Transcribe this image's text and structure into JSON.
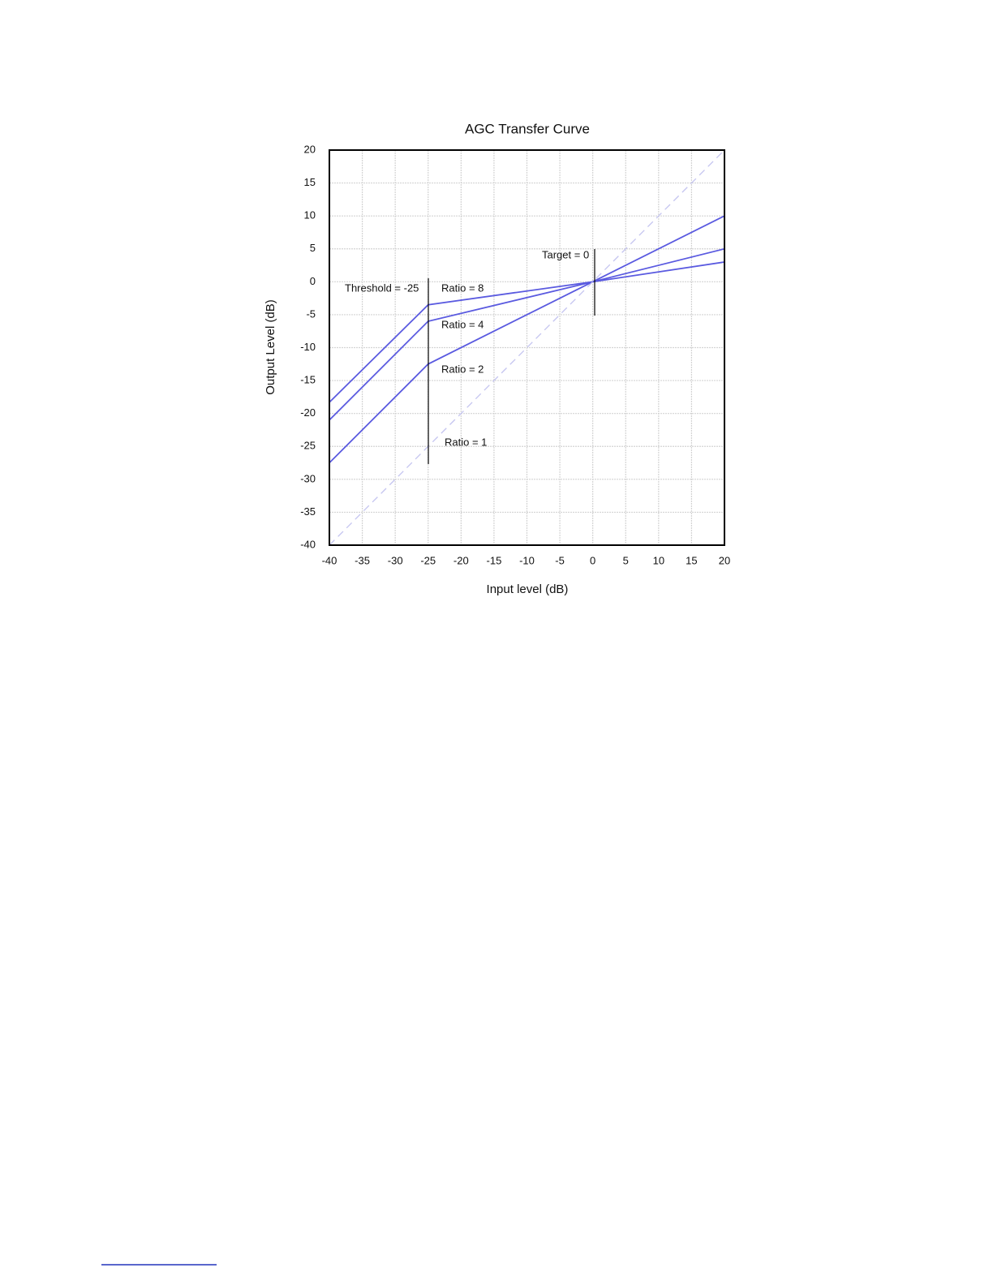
{
  "chart_data": {
    "type": "line",
    "title": "AGC Transfer Curve",
    "x_label": "Input level (dB)",
    "y_label": "Output Level (dB)",
    "x": [
      -40,
      -25,
      0,
      20
    ],
    "series": [
      {
        "name": "Ratio = 8",
        "color": "#5a5ae0",
        "values": [
          -18.3,
          -3.5,
          0,
          3
        ]
      },
      {
        "name": "Ratio = 4",
        "color": "#5a5ae0",
        "values": [
          -21,
          -6,
          0,
          5
        ]
      },
      {
        "name": "Ratio = 2",
        "color": "#5a5ae0",
        "values": [
          -27.5,
          -12.5,
          0,
          10
        ]
      },
      {
        "name": "Ratio = 1",
        "color": "#c4c4f0",
        "dashed": true,
        "values": [
          -40,
          -25,
          0,
          20
        ]
      }
    ],
    "annotations": [
      "Threshold = -25",
      "Target = 0"
    ],
    "xlim": [
      -40,
      20
    ],
    "ylim": [
      -40,
      20
    ],
    "xticks": [
      -40,
      -35,
      -30,
      -25,
      -20,
      -15,
      -10,
      -5,
      0,
      5,
      10,
      15,
      20
    ],
    "yticks": [
      -40,
      -35,
      -30,
      -25,
      -20,
      -15,
      -10,
      -5,
      0,
      5,
      10,
      15,
      20
    ],
    "grid": true
  }
}
